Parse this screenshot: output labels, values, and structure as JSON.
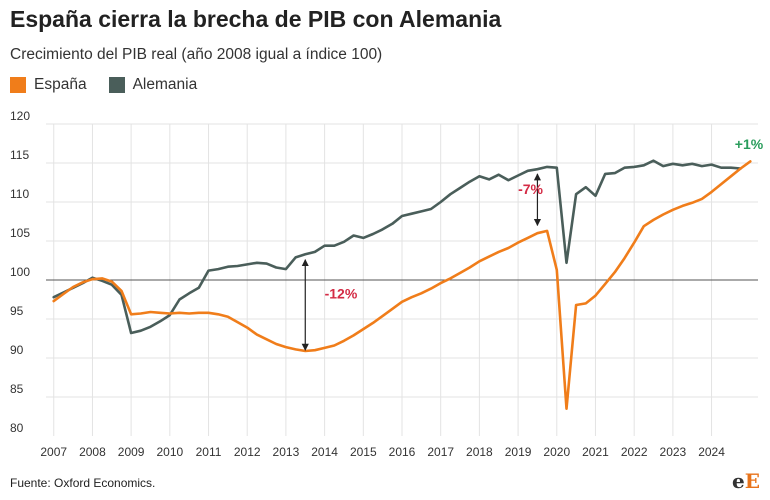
{
  "header": {
    "title": "España cierra la brecha de PIB con Alemania",
    "subtitle": "Crecimiento del PIB real (año 2008 igual a índice 100)"
  },
  "legend": [
    {
      "label": "España",
      "color": "#f07d1a"
    },
    {
      "label": "Alemania",
      "color": "#4a5e5a"
    }
  ],
  "footer": {
    "source": "Fuente: Oxford Economics.",
    "logo_e1": "e",
    "logo_e2": "E"
  },
  "chart_data": {
    "type": "line",
    "ylim": [
      80,
      120
    ],
    "yticks": [
      80,
      85,
      90,
      95,
      100,
      105,
      110,
      115,
      120
    ],
    "xlim": [
      2006.8,
      2025.2
    ],
    "xticks": [
      "2007",
      "2008",
      "2009",
      "2010",
      "2011",
      "2012",
      "2013",
      "2014",
      "2015",
      "2016",
      "2017",
      "2018",
      "2019",
      "2020",
      "2021",
      "2022",
      "2023",
      "2024"
    ],
    "grid": true,
    "reference_line": 100,
    "series": [
      {
        "name": "España",
        "color": "#f07d1a",
        "points": [
          [
            2007.0,
            97.3
          ],
          [
            2007.25,
            98.2
          ],
          [
            2007.5,
            99.1
          ],
          [
            2007.75,
            99.7
          ],
          [
            2008.0,
            100.1
          ],
          [
            2008.25,
            100.2
          ],
          [
            2008.5,
            99.8
          ],
          [
            2008.75,
            98.6
          ],
          [
            2009.0,
            95.6
          ],
          [
            2009.25,
            95.7
          ],
          [
            2009.5,
            95.9
          ],
          [
            2009.75,
            95.8
          ],
          [
            2010.0,
            95.7
          ],
          [
            2010.25,
            95.8
          ],
          [
            2010.5,
            95.7
          ],
          [
            2010.75,
            95.8
          ],
          [
            2011.0,
            95.8
          ],
          [
            2011.25,
            95.6
          ],
          [
            2011.5,
            95.3
          ],
          [
            2011.75,
            94.6
          ],
          [
            2012.0,
            93.9
          ],
          [
            2012.25,
            93.0
          ],
          [
            2012.5,
            92.4
          ],
          [
            2012.75,
            91.8
          ],
          [
            2013.0,
            91.4
          ],
          [
            2013.25,
            91.1
          ],
          [
            2013.5,
            90.9
          ],
          [
            2013.75,
            91.0
          ],
          [
            2014.0,
            91.3
          ],
          [
            2014.25,
            91.6
          ],
          [
            2014.5,
            92.2
          ],
          [
            2014.75,
            92.9
          ],
          [
            2015.0,
            93.7
          ],
          [
            2015.25,
            94.5
          ],
          [
            2015.5,
            95.4
          ],
          [
            2015.75,
            96.3
          ],
          [
            2016.0,
            97.2
          ],
          [
            2016.25,
            97.8
          ],
          [
            2016.5,
            98.3
          ],
          [
            2016.75,
            98.9
          ],
          [
            2017.0,
            99.6
          ],
          [
            2017.25,
            100.2
          ],
          [
            2017.5,
            100.9
          ],
          [
            2017.75,
            101.6
          ],
          [
            2018.0,
            102.4
          ],
          [
            2018.25,
            103.0
          ],
          [
            2018.5,
            103.6
          ],
          [
            2018.75,
            104.1
          ],
          [
            2019.0,
            104.8
          ],
          [
            2019.25,
            105.4
          ],
          [
            2019.5,
            106.0
          ],
          [
            2019.75,
            106.3
          ],
          [
            2020.0,
            101.3
          ],
          [
            2020.25,
            83.5
          ],
          [
            2020.5,
            96.8
          ],
          [
            2020.75,
            97.0
          ],
          [
            2021.0,
            98.0
          ],
          [
            2021.25,
            99.5
          ],
          [
            2021.5,
            101.0
          ],
          [
            2021.75,
            102.8
          ],
          [
            2022.0,
            104.8
          ],
          [
            2022.25,
            106.9
          ],
          [
            2022.5,
            107.7
          ],
          [
            2022.75,
            108.4
          ],
          [
            2023.0,
            109.0
          ],
          [
            2023.25,
            109.5
          ],
          [
            2023.5,
            109.9
          ],
          [
            2023.75,
            110.4
          ],
          [
            2024.0,
            111.3
          ],
          [
            2024.25,
            112.3
          ],
          [
            2024.5,
            113.3
          ],
          [
            2024.75,
            114.3
          ],
          [
            2025.0,
            115.2
          ]
        ]
      },
      {
        "name": "Alemania",
        "color": "#4a5e5a",
        "points": [
          [
            2007.0,
            97.8
          ],
          [
            2007.25,
            98.4
          ],
          [
            2007.5,
            99.0
          ],
          [
            2007.75,
            99.6
          ],
          [
            2008.0,
            100.3
          ],
          [
            2008.25,
            99.9
          ],
          [
            2008.5,
            99.4
          ],
          [
            2008.75,
            98.1
          ],
          [
            2009.0,
            93.2
          ],
          [
            2009.25,
            93.5
          ],
          [
            2009.5,
            94.0
          ],
          [
            2009.75,
            94.7
          ],
          [
            2010.0,
            95.5
          ],
          [
            2010.25,
            97.5
          ],
          [
            2010.5,
            98.3
          ],
          [
            2010.75,
            99.0
          ],
          [
            2011.0,
            101.2
          ],
          [
            2011.25,
            101.4
          ],
          [
            2011.5,
            101.7
          ],
          [
            2011.75,
            101.8
          ],
          [
            2012.0,
            102.0
          ],
          [
            2012.25,
            102.2
          ],
          [
            2012.5,
            102.1
          ],
          [
            2012.75,
            101.6
          ],
          [
            2013.0,
            101.4
          ],
          [
            2013.25,
            102.9
          ],
          [
            2013.5,
            103.3
          ],
          [
            2013.75,
            103.6
          ],
          [
            2014.0,
            104.4
          ],
          [
            2014.25,
            104.4
          ],
          [
            2014.5,
            104.9
          ],
          [
            2014.75,
            105.7
          ],
          [
            2015.0,
            105.4
          ],
          [
            2015.25,
            105.9
          ],
          [
            2015.5,
            106.5
          ],
          [
            2015.75,
            107.2
          ],
          [
            2016.0,
            108.2
          ],
          [
            2016.25,
            108.5
          ],
          [
            2016.5,
            108.8
          ],
          [
            2016.75,
            109.1
          ],
          [
            2017.0,
            110.0
          ],
          [
            2017.25,
            111.0
          ],
          [
            2017.5,
            111.8
          ],
          [
            2017.75,
            112.6
          ],
          [
            2018.0,
            113.3
          ],
          [
            2018.25,
            112.9
          ],
          [
            2018.5,
            113.5
          ],
          [
            2018.75,
            112.8
          ],
          [
            2019.0,
            113.4
          ],
          [
            2019.25,
            114.0
          ],
          [
            2019.5,
            114.2
          ],
          [
            2019.75,
            114.5
          ],
          [
            2020.0,
            114.4
          ],
          [
            2020.25,
            102.2
          ],
          [
            2020.5,
            111.0
          ],
          [
            2020.75,
            111.9
          ],
          [
            2021.0,
            110.8
          ],
          [
            2021.25,
            113.6
          ],
          [
            2021.5,
            113.7
          ],
          [
            2021.75,
            114.4
          ],
          [
            2022.0,
            114.5
          ],
          [
            2022.25,
            114.7
          ],
          [
            2022.5,
            115.3
          ],
          [
            2022.75,
            114.6
          ],
          [
            2023.0,
            114.9
          ],
          [
            2023.25,
            114.7
          ],
          [
            2023.5,
            114.9
          ],
          [
            2023.75,
            114.6
          ],
          [
            2024.0,
            114.8
          ],
          [
            2024.25,
            114.4
          ],
          [
            2024.5,
            114.4
          ],
          [
            2024.75,
            114.3
          ]
        ]
      }
    ],
    "annotations": [
      {
        "text": "-12%",
        "x": 2013.5,
        "from": 91.0,
        "to": 102.6,
        "label_x": 2014.0,
        "label_y": 97.6,
        "color": "#d42b45",
        "arrow": true
      },
      {
        "text": "-7%",
        "x": 2019.5,
        "from": 107.0,
        "to": 113.6,
        "label_x": 2019.0,
        "label_y": 111.0,
        "color": "#d42b45",
        "arrow": true
      },
      {
        "text": "+1%",
        "x": 2024.8,
        "label_x": 2024.6,
        "label_y": 116.8,
        "color": "#2a9d5c",
        "arrow": false
      }
    ]
  }
}
